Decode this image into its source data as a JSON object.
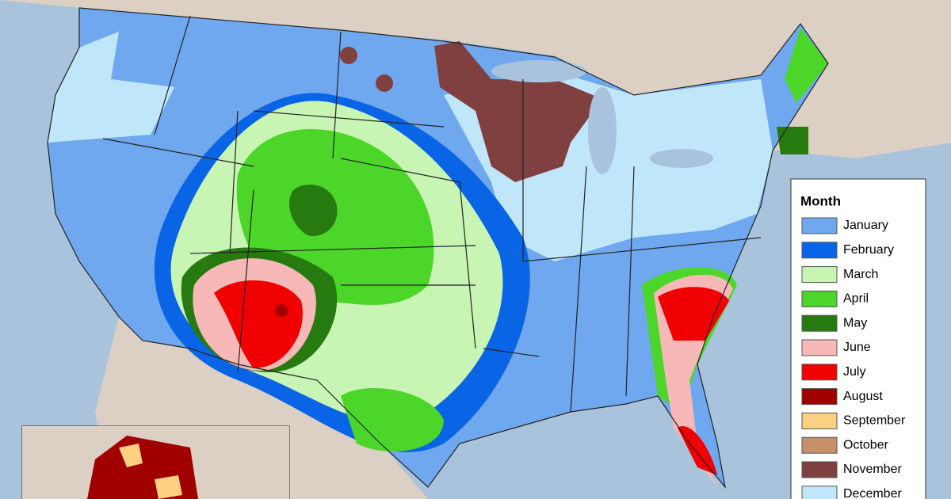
{
  "legend": {
    "title": "Month",
    "items": [
      {
        "label": "January",
        "color": "#6fa8ee"
      },
      {
        "label": "February",
        "color": "#0a64e6"
      },
      {
        "label": "March",
        "color": "#c8f5b4"
      },
      {
        "label": "April",
        "color": "#4cd62a"
      },
      {
        "label": "May",
        "color": "#267a10"
      },
      {
        "label": "June",
        "color": "#f7b8b8"
      },
      {
        "label": "July",
        "color": "#f00000"
      },
      {
        "label": "August",
        "color": "#a00000"
      },
      {
        "label": "September",
        "color": "#fcd080"
      },
      {
        "label": "October",
        "color": "#c8906a"
      },
      {
        "label": "November",
        "color": "#804040"
      },
      {
        "label": "December",
        "color": "#c0e6fa"
      }
    ]
  }
}
